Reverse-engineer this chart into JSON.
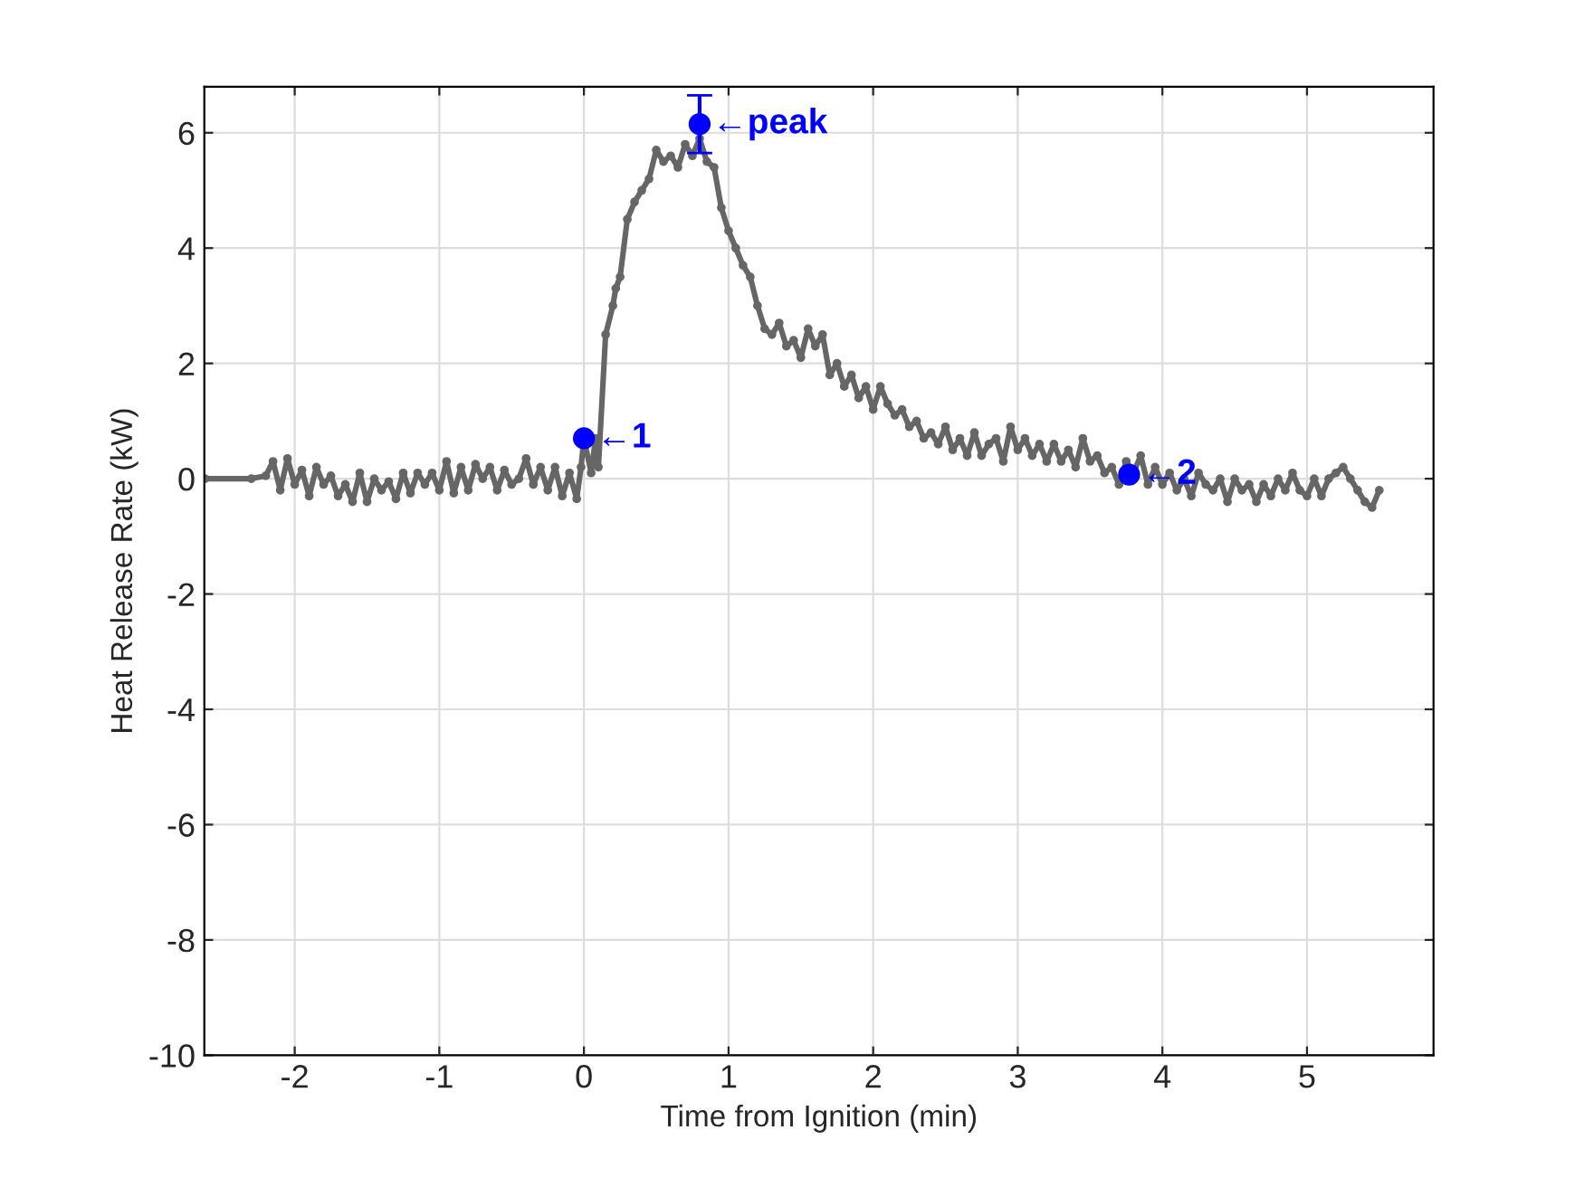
{
  "chart_data": {
    "type": "line",
    "xlabel": "Time from Ignition (min)",
    "ylabel": "Heat Release Rate (kW)",
    "xlim": [
      -2.625,
      5.875
    ],
    "xticks": [
      -2,
      -1,
      0,
      1,
      2,
      3,
      4,
      5
    ],
    "ylim": [
      -10,
      6.8
    ],
    "yticks": [
      -10,
      -8,
      -6,
      -4,
      -2,
      0,
      2,
      4,
      6
    ],
    "grid": true,
    "line_style": "solid",
    "series": [
      {
        "color": "#666666",
        "marker": "circle",
        "x": [
          -2.62,
          -2.3,
          -2.2,
          -2.15,
          -2.1,
          -2.05,
          -2.0,
          -1.95,
          -1.9,
          -1.85,
          -1.8,
          -1.75,
          -1.7,
          -1.65,
          -1.6,
          -1.55,
          -1.5,
          -1.45,
          -1.4,
          -1.35,
          -1.3,
          -1.25,
          -1.2,
          -1.15,
          -1.1,
          -1.05,
          -1.0,
          -0.95,
          -0.9,
          -0.85,
          -0.8,
          -0.75,
          -0.7,
          -0.65,
          -0.6,
          -0.55,
          -0.5,
          -0.45,
          -0.4,
          -0.35,
          -0.3,
          -0.25,
          -0.2,
          -0.15,
          -0.1,
          -0.05,
          -0.02,
          0.0,
          0.05,
          0.08,
          0.1,
          0.15,
          0.2,
          0.22,
          0.25,
          0.3,
          0.35,
          0.4,
          0.45,
          0.5,
          0.55,
          0.6,
          0.65,
          0.7,
          0.75,
          0.8,
          0.85,
          0.9,
          0.95,
          1.0,
          1.05,
          1.1,
          1.15,
          1.2,
          1.25,
          1.3,
          1.35,
          1.4,
          1.45,
          1.5,
          1.55,
          1.6,
          1.65,
          1.7,
          1.75,
          1.8,
          1.85,
          1.9,
          1.95,
          2.0,
          2.05,
          2.1,
          2.15,
          2.2,
          2.25,
          2.3,
          2.35,
          2.4,
          2.45,
          2.5,
          2.55,
          2.6,
          2.65,
          2.7,
          2.75,
          2.8,
          2.85,
          2.9,
          2.95,
          3.0,
          3.05,
          3.1,
          3.15,
          3.2,
          3.25,
          3.3,
          3.35,
          3.4,
          3.45,
          3.5,
          3.55,
          3.6,
          3.65,
          3.7,
          3.75,
          3.8,
          3.85,
          3.9,
          3.95,
          4.0,
          4.05,
          4.1,
          4.15,
          4.2,
          4.25,
          4.3,
          4.35,
          4.4,
          4.45,
          4.5,
          4.55,
          4.6,
          4.65,
          4.7,
          4.75,
          4.8,
          4.85,
          4.9,
          4.95,
          5.0,
          5.05,
          5.1,
          5.15,
          5.2,
          5.25,
          5.3,
          5.35,
          5.4,
          5.45,
          5.5
        ],
        "values": [
          0,
          0,
          0.05,
          0.3,
          -0.2,
          0.35,
          -0.1,
          0.15,
          -0.3,
          0.2,
          -0.1,
          0.05,
          -0.3,
          -0.1,
          -0.4,
          0.1,
          -0.4,
          0.0,
          -0.2,
          -0.05,
          -0.35,
          0.1,
          -0.25,
          0.1,
          -0.1,
          0.1,
          -0.2,
          0.3,
          -0.25,
          0.2,
          -0.2,
          0.25,
          0.0,
          0.2,
          -0.2,
          0.15,
          -0.1,
          0.0,
          0.35,
          -0.1,
          0.2,
          -0.2,
          0.2,
          -0.3,
          0.1,
          -0.35,
          0.2,
          0.7,
          0.1,
          0.7,
          0.2,
          2.5,
          3.0,
          3.3,
          3.5,
          4.5,
          4.8,
          5.0,
          5.2,
          5.7,
          5.5,
          5.6,
          5.4,
          5.8,
          5.6,
          5.9,
          5.5,
          5.4,
          4.7,
          4.3,
          4.0,
          3.7,
          3.5,
          3.0,
          2.6,
          2.5,
          2.7,
          2.3,
          2.4,
          2.1,
          2.6,
          2.3,
          2.5,
          1.8,
          2.0,
          1.6,
          1.8,
          1.4,
          1.6,
          1.2,
          1.6,
          1.3,
          1.1,
          1.2,
          0.9,
          1.0,
          0.7,
          0.8,
          0.6,
          0.9,
          0.5,
          0.7,
          0.4,
          0.8,
          0.4,
          0.6,
          0.7,
          0.3,
          0.9,
          0.5,
          0.7,
          0.4,
          0.6,
          0.3,
          0.6,
          0.3,
          0.5,
          0.2,
          0.7,
          0.3,
          0.4,
          0.1,
          0.2,
          -0.1,
          0.3,
          0.1,
          0.4,
          -0.1,
          0.2,
          -0.1,
          0.1,
          -0.2,
          0.0,
          -0.3,
          0.1,
          -0.1,
          -0.2,
          0.0,
          -0.4,
          0.0,
          -0.2,
          -0.1,
          -0.4,
          -0.1,
          -0.3,
          0.0,
          -0.2,
          0.1,
          -0.2,
          -0.3,
          0.0,
          -0.3,
          0.0,
          0.1,
          0.2,
          0.0,
          -0.2,
          -0.4,
          -0.5,
          -0.2
        ]
      },
      {
        "type": "scatter",
        "color": "#0000ff",
        "marker": "circle",
        "x": [
          0,
          0.8,
          3.77
        ],
        "values": [
          0.7,
          6.15,
          0.07
        ],
        "errors": [
          null,
          0.5,
          null
        ]
      }
    ],
    "annotations": [
      {
        "text": "←1",
        "x": 0,
        "y": 0.7
      },
      {
        "text": "←peak",
        "x": 0.8,
        "y": 6.15
      },
      {
        "text": "←2",
        "x": 3.77,
        "y": 0.07
      }
    ]
  }
}
